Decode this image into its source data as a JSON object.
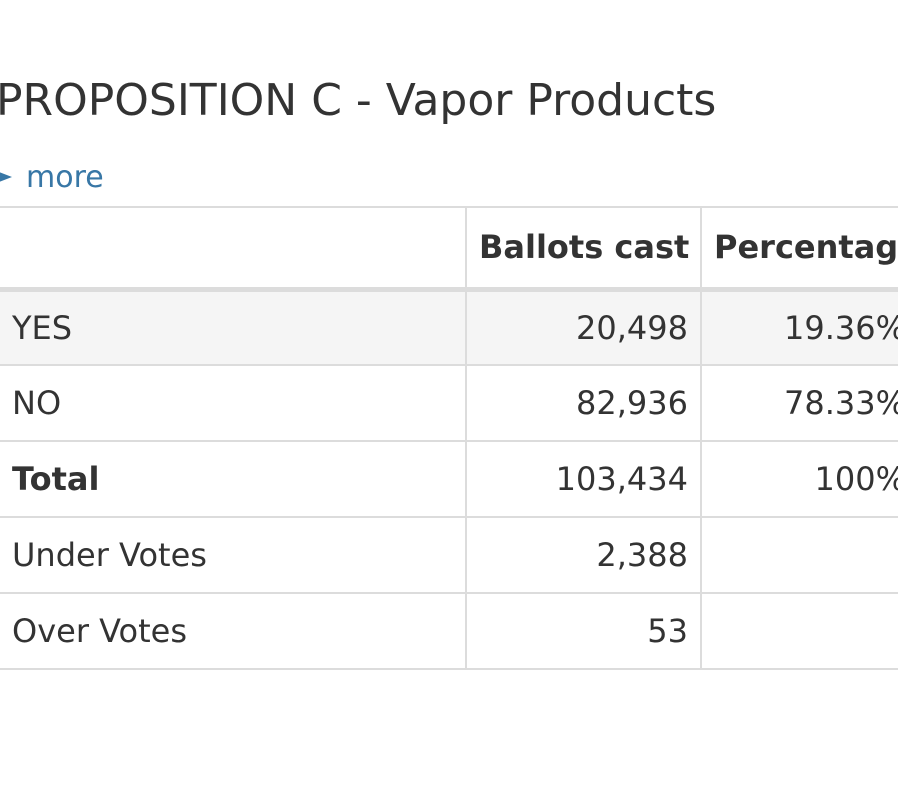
{
  "contest": {
    "title": "PROPOSITION C - Vapor Products",
    "more_label": "more"
  },
  "table": {
    "headers": [
      "",
      "Ballots cast",
      "Percentage"
    ],
    "rows": [
      {
        "name": "YES",
        "ballots": "20,498",
        "percentage": "19.36%"
      },
      {
        "name": "NO",
        "ballots": "82,936",
        "percentage": "78.33%"
      },
      {
        "name": "Total",
        "ballots": "103,434",
        "percentage": "100%"
      },
      {
        "name": "Under Votes",
        "ballots": "2,388",
        "percentage": ""
      },
      {
        "name": "Over Votes",
        "ballots": "53",
        "percentage": ""
      }
    ]
  },
  "colors": {
    "link": "#3877a6",
    "text": "#333333",
    "border": "#dcdcdc",
    "row_shade": "#f5f5f5"
  }
}
